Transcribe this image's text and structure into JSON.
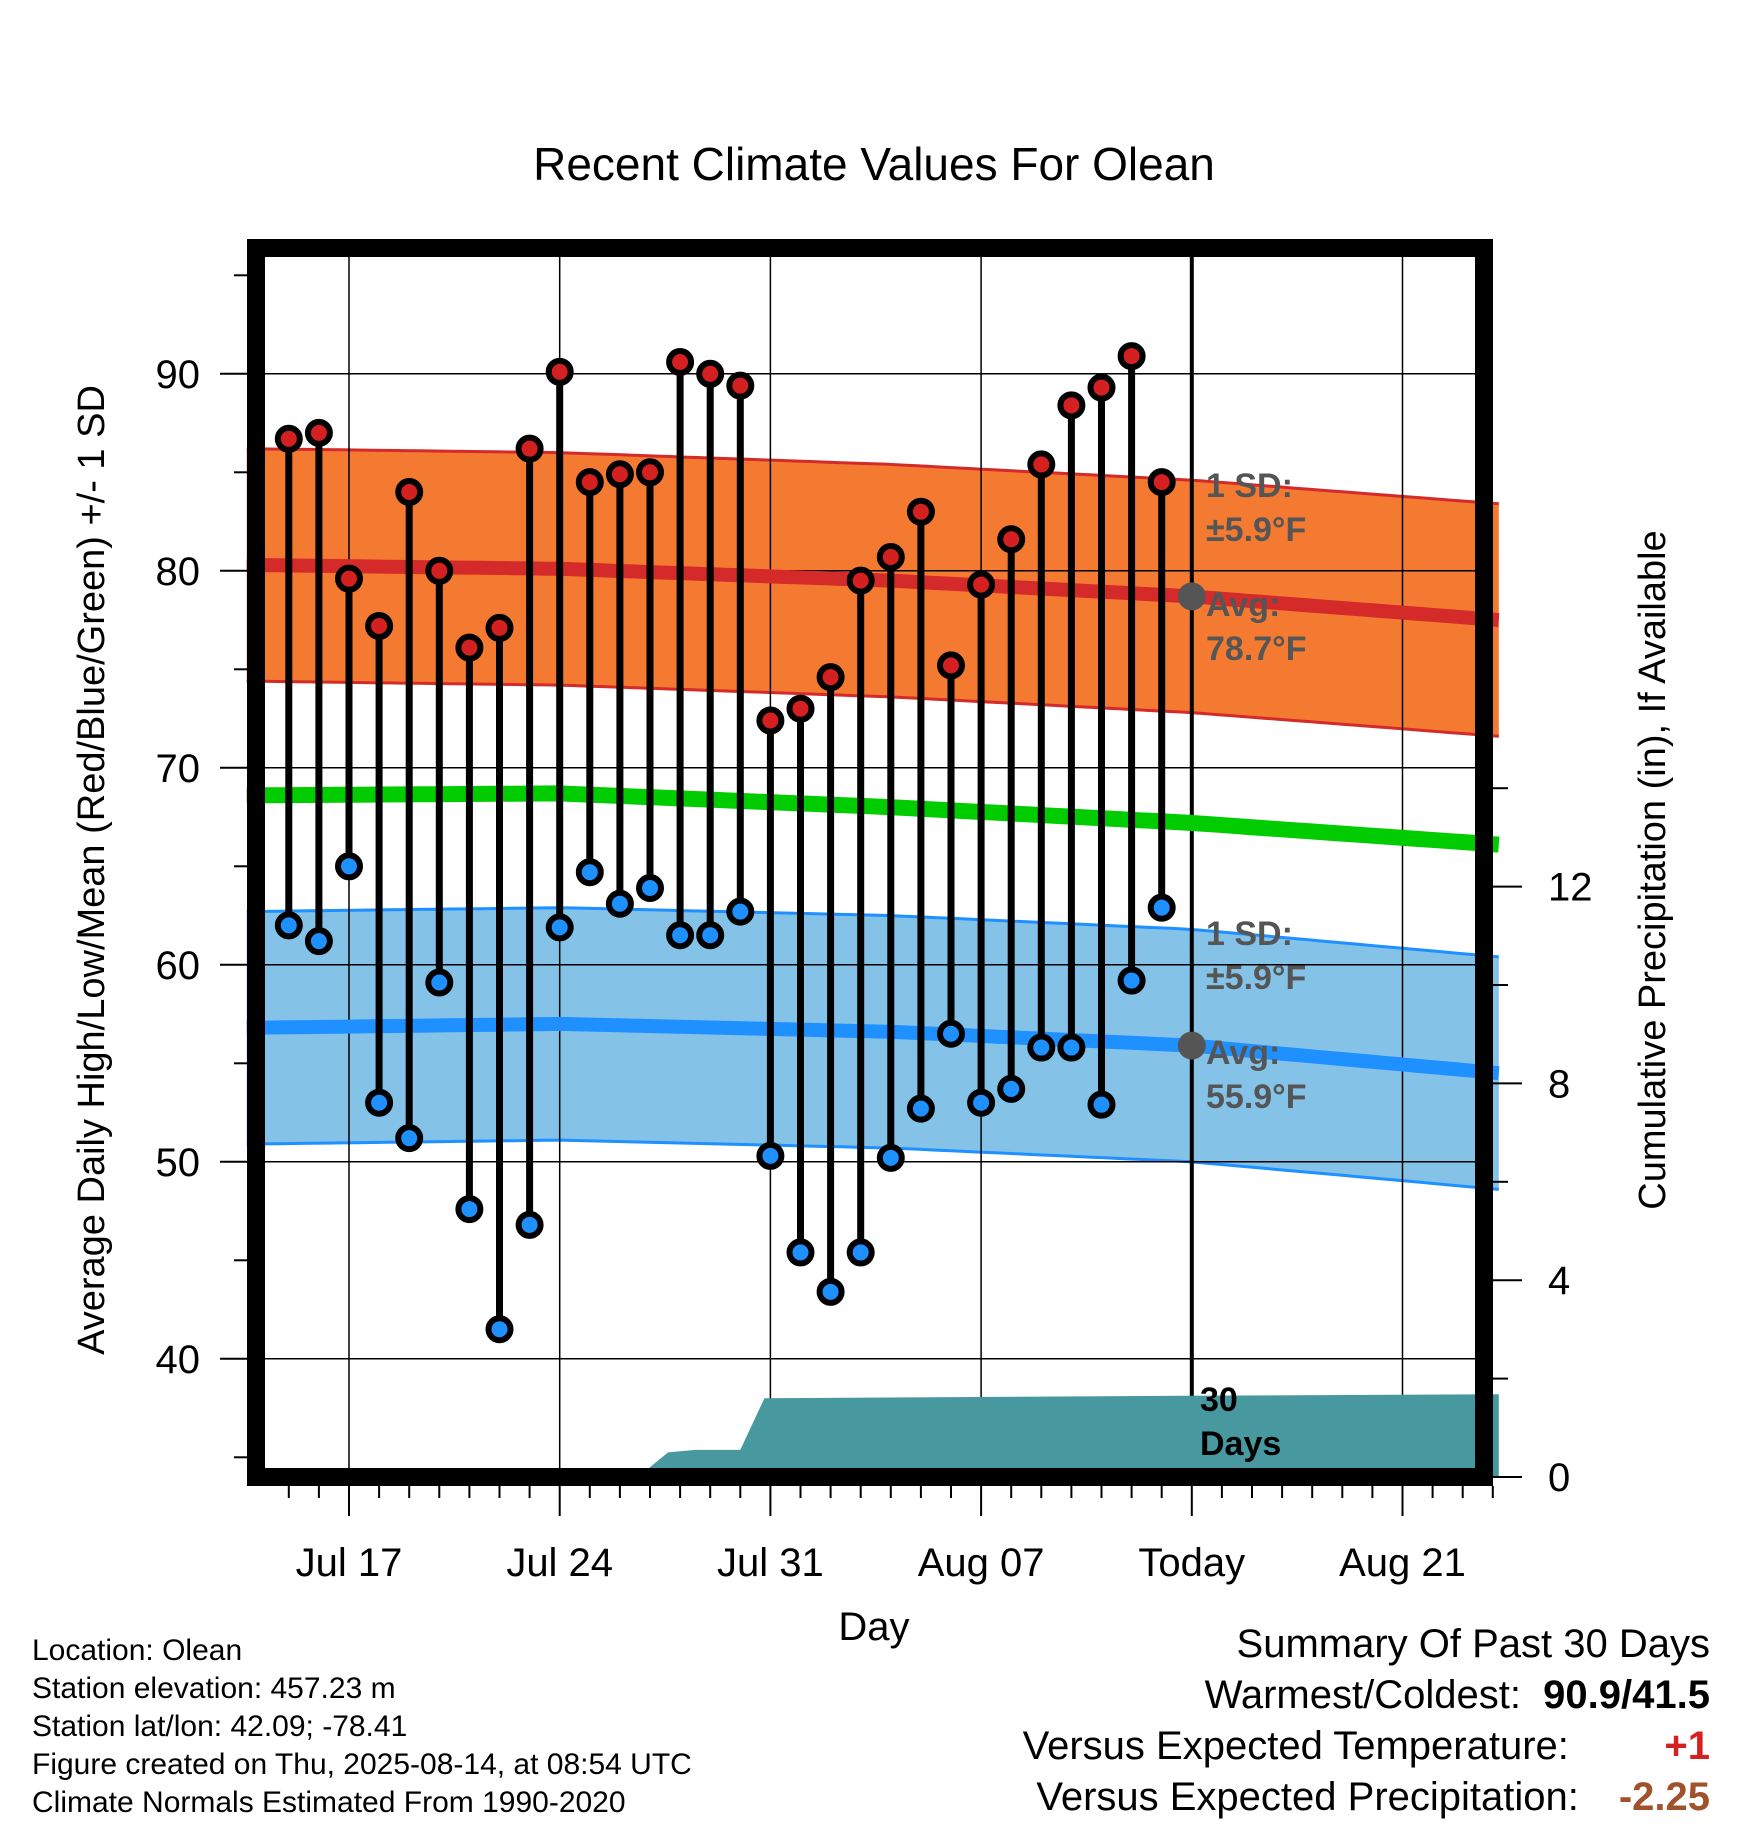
{
  "chart_data": {
    "type": "line",
    "title": "Recent Climate Values For Olean",
    "xlabel": "Day",
    "ylabel": "Average Daily High/Low/Mean (Red/Blue/Green) +/- 1 SD",
    "y2label": "Cumulative Precipitation (in), If Available",
    "ylim": [
      34,
      97
    ],
    "y2lim": [
      0,
      30
    ],
    "xlim": [
      -1.4,
      40.2
    ],
    "yticks": [
      40,
      50,
      60,
      70,
      80,
      90
    ],
    "y2ticks": [
      0,
      4,
      8,
      12
    ],
    "xticks": [
      {
        "x": 2,
        "label": "Jul 17"
      },
      {
        "x": 9,
        "label": "Jul 24"
      },
      {
        "x": 16,
        "label": "Jul 31"
      },
      {
        "x": 23,
        "label": "Aug 07"
      },
      {
        "x": 30,
        "label": "Today"
      },
      {
        "x": 37,
        "label": "Aug 21"
      }
    ],
    "grid": true,
    "highs": [
      86.7,
      87.0,
      79.6,
      77.2,
      84.0,
      80.0,
      76.1,
      77.1,
      86.2,
      90.1,
      84.5,
      84.9,
      85.0,
      90.6,
      90.0,
      89.4,
      72.4,
      73.0,
      74.6,
      79.5,
      80.7,
      83.0,
      75.2,
      79.3,
      81.6,
      85.4,
      88.4,
      89.3,
      90.9,
      84.5
    ],
    "lows": [
      62.0,
      61.2,
      65.0,
      53.0,
      51.2,
      59.1,
      47.6,
      41.5,
      46.8,
      61.9,
      64.7,
      63.1,
      63.9,
      61.5,
      61.5,
      62.7,
      50.3,
      45.4,
      43.4,
      45.4,
      50.2,
      52.7,
      56.5,
      53.0,
      53.7,
      55.8,
      55.8,
      52.9,
      59.2,
      62.9
    ],
    "normal_high": {
      "x": [
        -1.4,
        9,
        20,
        30,
        40.2
      ],
      "avg": [
        80.3,
        80.1,
        79.5,
        78.7,
        77.5
      ],
      "sd": 5.9
    },
    "normal_low": {
      "x": [
        -1.4,
        9,
        20,
        30,
        40.2
      ],
      "avg": [
        56.8,
        57.0,
        56.6,
        55.9,
        54.5
      ],
      "sd": 5.9
    },
    "normal_mean": {
      "x": [
        -1.4,
        9,
        20,
        30,
        40.2
      ],
      "avg": [
        68.6,
        68.7,
        68.0,
        67.2,
        66.1
      ]
    },
    "precip_cumulative": {
      "x": [
        -1.4,
        3.8,
        4.7,
        11.9,
        12.6,
        13.5,
        15.0,
        15.8,
        29.8,
        40.2
      ],
      "values": [
        0,
        0,
        0.12,
        0.15,
        0.5,
        0.55,
        0.55,
        1.6,
        1.65,
        1.68
      ]
    },
    "annotations": {
      "high_sd_label": "1 SD:",
      "high_sd_value": "±5.9°F",
      "high_avg_label": "Avg:",
      "high_avg_value": "78.7°F",
      "low_sd_label": "1 SD:",
      "low_sd_value": "±5.9°F",
      "low_avg_label": "Avg:",
      "low_avg_value": "55.9°F",
      "days_line1": "30",
      "days_line2": "Days"
    },
    "colors": {
      "high_band": "#f47a32",
      "high_line": "#d42a2a",
      "low_band": "#85c2e8",
      "low_line": "#1e90ff",
      "mean_line": "#00cc00",
      "precip": "#48999f",
      "high_marker": "#d42020",
      "low_marker": "#1e90ff",
      "annotation_text": "#555555"
    }
  },
  "station_info": [
    "Location: Olean",
    "Station elevation: 457.23 m",
    "Station lat/lon: 42.09; -78.41",
    "Figure created on Thu, 2025-08-14, at 08:54 UTC",
    "Climate Normals Estimated From 1990-2020"
  ],
  "summary": {
    "title": "Summary Of Past 30 Days",
    "warmest_label": "Warmest/Coldest:",
    "warmest_value": "90.9/41.5",
    "temp_label": "Versus Expected Temperature:",
    "temp_value": "+1",
    "temp_color": "#d42020",
    "precip_label": "Versus Expected Precipitation:",
    "precip_value": "-2.25",
    "precip_color": "#a0522d"
  }
}
